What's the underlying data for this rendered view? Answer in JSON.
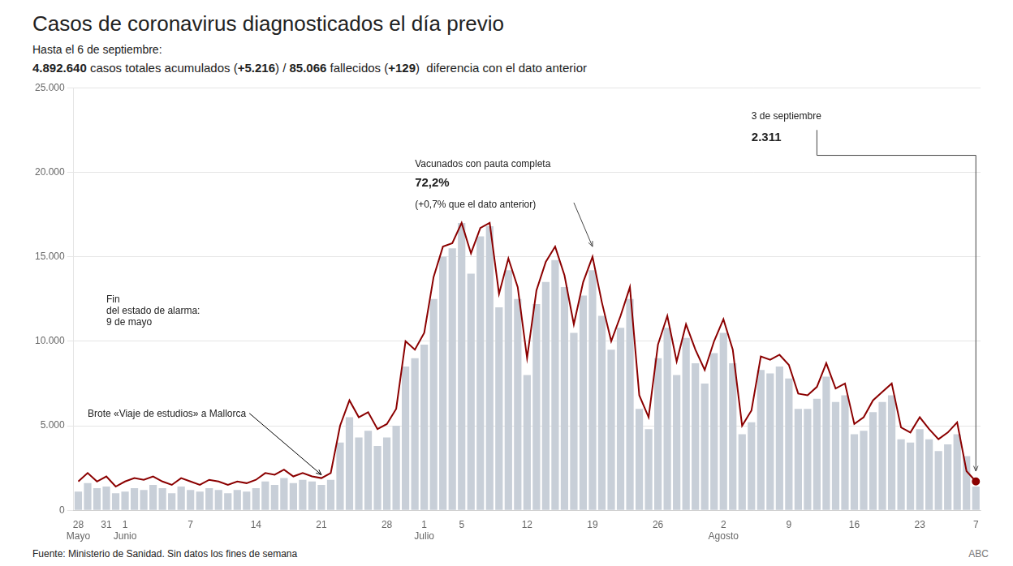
{
  "chart_data": {
    "type": "bar",
    "title": "Casos de coronavirus diagnosticados el día previo",
    "subtitle": "Hasta el 6 de septiembre:",
    "subtitle_parts": [
      {
        "text": "4.892.640",
        "bold": true
      },
      {
        "text": " casos totales acumulados (",
        "bold": false
      },
      {
        "text": "+5.216",
        "bold": true
      },
      {
        "text": ") / ",
        "bold": false
      },
      {
        "text": "85.066",
        "bold": true
      },
      {
        "text": " fallecidos (",
        "bold": false
      },
      {
        "text": "+129",
        "bold": true
      },
      {
        "text": ")  diferencia con el dato anterior",
        "bold": false
      }
    ],
    "footer": "Fuente: Ministerio de Sanidad. Sin datos los fines de semana",
    "footer_right": "ABC",
    "categories": [
      "28",
      null,
      null,
      "31",
      null,
      "1",
      null,
      null,
      null,
      null,
      null,
      null,
      "7",
      null,
      null,
      null,
      null,
      null,
      null,
      "14",
      null,
      null,
      null,
      null,
      null,
      null,
      "21",
      null,
      null,
      null,
      null,
      null,
      null,
      "28",
      null,
      null,
      null,
      "1",
      null,
      null,
      null,
      "5",
      null,
      null,
      null,
      null,
      null,
      null,
      "12",
      null,
      null,
      null,
      null,
      null,
      null,
      "19",
      null,
      null,
      null,
      null,
      null,
      null,
      "26",
      null,
      null,
      null,
      null,
      null,
      null,
      "2",
      null,
      null,
      null,
      null,
      null,
      null,
      "9",
      null,
      null,
      null,
      null,
      null,
      null,
      "16",
      null,
      null,
      null,
      null,
      null,
      null,
      "23",
      null,
      null,
      null,
      null,
      null,
      "7"
    ],
    "month_labels": [
      {
        "label": "Mayo",
        "x": 0
      },
      {
        "label": "Junio",
        "x": 5
      },
      {
        "label": "Julio",
        "x": 37
      },
      {
        "label": "Agosto",
        "x": 69
      }
    ],
    "series": [
      {
        "type": "bar",
        "color": "#c8cfd8",
        "values": [
          1100,
          1600,
          1300,
          1400,
          1000,
          1100,
          1300,
          1200,
          1500,
          1300,
          1000,
          1400,
          1200,
          1100,
          1300,
          1200,
          1000,
          1200,
          1100,
          1300,
          1700,
          1500,
          1900,
          1600,
          1800,
          1700,
          1500,
          1800,
          4000,
          5500,
          4300,
          4700,
          3800,
          4300,
          5000,
          8500,
          9000,
          9800,
          12500,
          15000,
          15500,
          17000,
          14000,
          16200,
          16800,
          12000,
          14200,
          12500,
          8000,
          12200,
          13500,
          14800,
          13200,
          10500,
          12700,
          14200,
          11500,
          9500,
          10800,
          12500,
          6000,
          4800,
          9000,
          10800,
          8000,
          10200,
          8700,
          7500,
          9300,
          10500,
          8700,
          4500,
          5200,
          8300,
          8100,
          8500,
          7800,
          6000,
          6000,
          6600,
          7900,
          6400,
          6800,
          4500,
          4700,
          5800,
          6400,
          6800,
          4200,
          4000,
          4800,
          4200,
          3500,
          3900,
          4500,
          3200,
          1400
        ]
      },
      {
        "type": "line",
        "color": "#8b0000",
        "values": [
          1700,
          2200,
          1700,
          2000,
          1400,
          1700,
          1900,
          1800,
          2000,
          1700,
          1500,
          1900,
          1700,
          1500,
          1800,
          1700,
          1500,
          1700,
          1600,
          1800,
          2200,
          2100,
          2400,
          2000,
          2200,
          2000,
          1900,
          2200,
          5000,
          6500,
          5500,
          5800,
          4800,
          5100,
          6000,
          10000,
          9500,
          10500,
          13800,
          15600,
          15800,
          17000,
          15200,
          16700,
          17000,
          12800,
          14900,
          13200,
          9000,
          13000,
          14700,
          15600,
          13900,
          11000,
          13500,
          15000,
          12300,
          10000,
          11500,
          13200,
          6800,
          5500,
          9800,
          11500,
          8800,
          11000,
          9500,
          8300,
          10000,
          11300,
          9500,
          5000,
          5900,
          9100,
          8900,
          9200,
          8600,
          6900,
          6800,
          7300,
          8700,
          7200,
          7500,
          5100,
          5500,
          6500,
          7000,
          7500,
          4900,
          4600,
          5500,
          4800,
          4200,
          4600,
          5200,
          2311,
          1700
        ]
      }
    ],
    "ylim": [
      0,
      25000
    ],
    "yticks": [
      0,
      {
        "value": 5000,
        "label": "5.000"
      },
      {
        "value": 10000,
        "label": "10.000"
      },
      {
        "value": 15000,
        "label": "15.000"
      },
      {
        "value": 20000,
        "label": "20.000"
      },
      {
        "value": 25000,
        "label": "25.000"
      }
    ],
    "grid": true,
    "annotations": [
      {
        "text": "Fin\ndel estado de alarma:\n9 de mayo",
        "x": 3,
        "y": 10800
      },
      {
        "text": "Brote «Viaje de estudios» a Mallorca",
        "x": 1,
        "y": 5400,
        "arrow_to": {
          "x": 26,
          "y": 2100
        }
      },
      {
        "text": "Vacunados con pauta completa",
        "x": 36,
        "y": 20200
      },
      {
        "text": "72,2%",
        "x": 36,
        "y": 19000,
        "bold": true
      },
      {
        "text": "(+0,7% que el dato anterior)",
        "x": 36,
        "y": 17800
      },
      {
        "text": "3 de septiembre",
        "x": 72,
        "y": 23000
      },
      {
        "text": "2.311",
        "x": 72,
        "y": 21700,
        "bold": true
      }
    ],
    "arrows": [
      {
        "from": {
          "x": 53,
          "y": 18200
        },
        "to": {
          "x": 55,
          "y": 15600
        }
      },
      {
        "from": {
          "x": 96,
          "y": 21000
        },
        "to": {
          "x": 96,
          "y": 2311
        }
      }
    ],
    "connectors": [
      {
        "from": {
          "x": 79,
          "y": 21000
        },
        "to": {
          "x": 96,
          "y": 21000
        }
      },
      {
        "from": {
          "x": 79,
          "y": 21000
        },
        "to": {
          "x": 79,
          "y": 22500
        }
      }
    ]
  }
}
